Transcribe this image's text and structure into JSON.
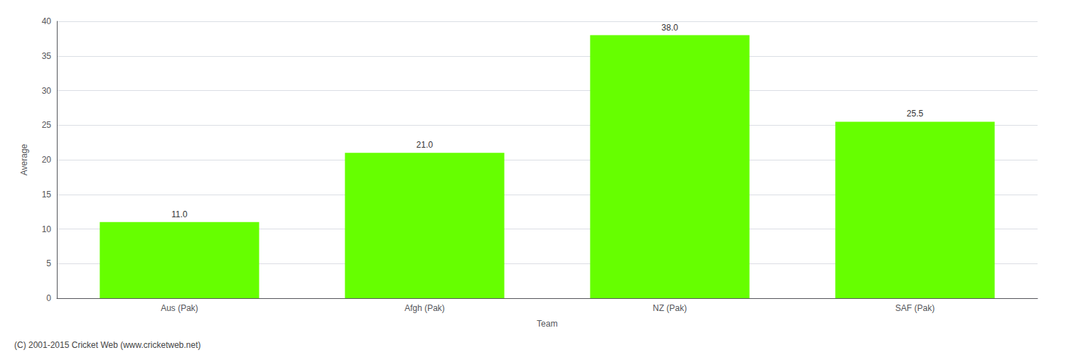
{
  "chart_data": {
    "type": "bar",
    "categories": [
      "Aus (Pak)",
      "Afgh (Pak)",
      "NZ (Pak)",
      "SAF (Pak)"
    ],
    "values": [
      11.0,
      21.0,
      38.0,
      25.5
    ],
    "value_labels": [
      "11.0",
      "21.0",
      "38.0",
      "25.5"
    ],
    "data_labels": true,
    "color": "#66ff00",
    "xlabel": "Team",
    "ylabel": "Average",
    "ylim": [
      0,
      40
    ],
    "yticks": [
      0,
      5,
      10,
      15,
      20,
      25,
      30,
      35,
      40
    ],
    "grid": true,
    "annotations": [
      "(C) 2001-2015 Cricket Web (www.cricketweb.net)"
    ]
  }
}
